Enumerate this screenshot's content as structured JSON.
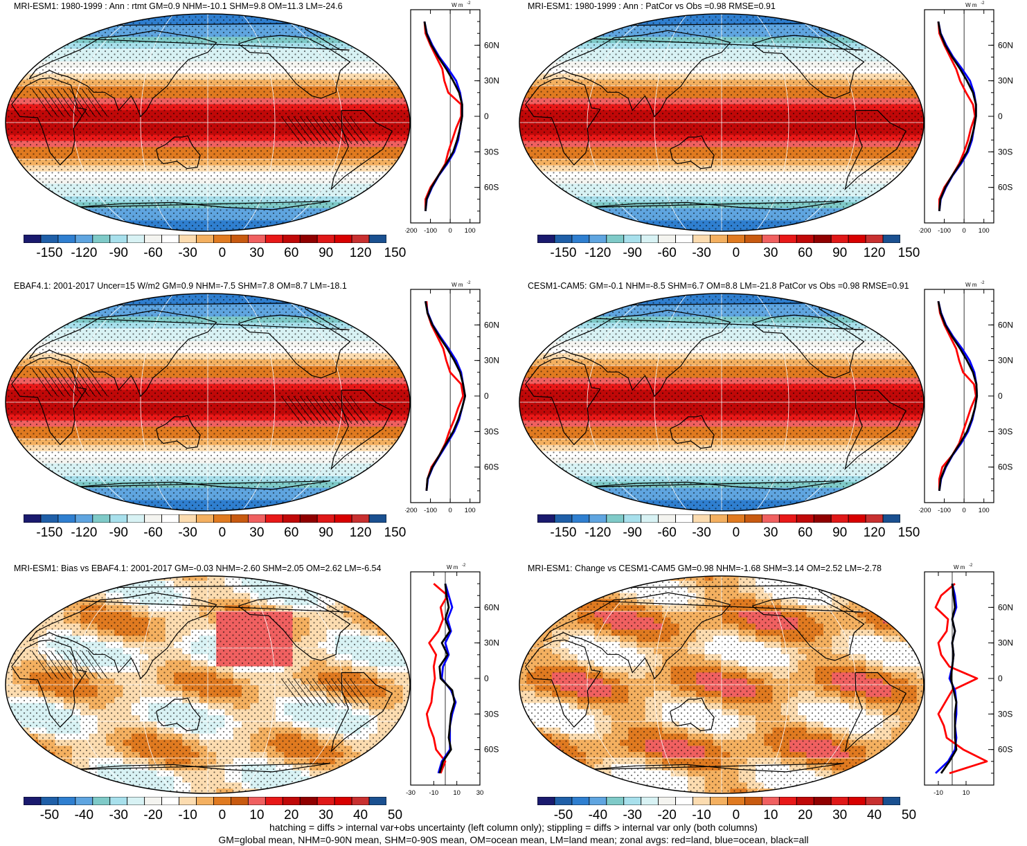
{
  "colors": {
    "levels": [
      "#1a1a6e",
      "#1f5fa8",
      "#2f7fd0",
      "#5fa5e0",
      "#7fcac8",
      "#a8e0ec",
      "#d8f2f4",
      "#f4f4f0",
      "#ffffff",
      "#fcdcb0",
      "#f4b060",
      "#e07a20",
      "#c85a10",
      "#f06060",
      "#e81818",
      "#c00808",
      "#900000",
      "#e01818",
      "#d80000",
      "#c83030",
      "#1a5090"
    ],
    "land": "#000000",
    "grid": "#ffffff",
    "zonal_land": "#ff0000",
    "zonal_ocean": "#0000ff",
    "zonal_all": "#000000"
  },
  "panels": [
    {
      "id": "mri-esm1-1980-1999",
      "title": "MRI-ESM1: 1980-1999 : Ann : rtmt GM=0.9 NHM=-10.1 SHM=9.8 OM=11.3 LM=-24.6",
      "kind": "absolute",
      "hatch": true,
      "colorbar_labels": [
        "-150",
        "-120",
        "-90",
        "-60",
        "-30",
        "0",
        "30",
        "60",
        "90",
        "120",
        "150"
      ],
      "zonal": {
        "unit": "W m",
        "unit_sup": "-2",
        "xticks": [
          "-200",
          "-100",
          "0",
          "100"
        ],
        "xmin": -200,
        "xmax": 150,
        "lat_labels": [
          "60N",
          "30N",
          "0",
          "30S",
          "60S"
        ]
      }
    },
    {
      "id": "mri-esm1-patcor",
      "title": "MRI-ESM1: 1980-1999 : Ann : PatCor vs Obs =0.98 RMSE=0.91",
      "kind": "absolute",
      "hatch": false,
      "colorbar_labels": [
        "-150",
        "-120",
        "-90",
        "-60",
        "-30",
        "0",
        "30",
        "60",
        "90",
        "120",
        "150"
      ],
      "zonal": {
        "unit": "W m",
        "unit_sup": "-2",
        "xticks": [
          "-200",
          "-100",
          "0",
          "100"
        ],
        "xmin": -200,
        "xmax": 150,
        "lat_labels": [
          "60N",
          "30N",
          "0",
          "30S",
          "60S"
        ]
      }
    },
    {
      "id": "ebaf41-obs",
      "title": "EBAF4.1: 2001-2017 Uncer=15 W/m2 GM=0.9 NHM=-7.5 SHM=7.8 OM=8.7 LM=-18.1",
      "kind": "absolute",
      "hatch": true,
      "colorbar_labels": [
        "-150",
        "-120",
        "-90",
        "-60",
        "-30",
        "0",
        "30",
        "60",
        "90",
        "120",
        "150"
      ],
      "zonal": {
        "unit": "W m",
        "unit_sup": "-2",
        "xticks": [
          "-200",
          "-100",
          "0",
          "100"
        ],
        "xmin": -200,
        "xmax": 150,
        "lat_labels": [
          "60N",
          "30N",
          "0",
          "30S",
          "60S"
        ]
      }
    },
    {
      "id": "cesm1-cam5",
      "title": "CESM1-CAM5: GM=-0.1 NHM=-8.5 SHM=6.7 OM=8.8 LM=-21.8 PatCor vs Obs =0.98 RMSE=0.91",
      "kind": "absolute",
      "hatch": false,
      "colorbar_labels": [
        "-150",
        "-120",
        "-90",
        "-60",
        "-30",
        "0",
        "30",
        "60",
        "90",
        "120",
        "150"
      ],
      "zonal": {
        "unit": "W m",
        "unit_sup": "-2",
        "xticks": [
          "-200",
          "-100",
          "0",
          "100"
        ],
        "xmin": -200,
        "xmax": 150,
        "lat_labels": [
          "60N",
          "30N",
          "0",
          "30S",
          "60S"
        ]
      }
    },
    {
      "id": "bias-vs-ebaf",
      "title": "MRI-ESM1: Bias vs EBAF4.1: 2001-2017 GM=-0.03 NHM=-2.60 SHM=2.05 OM=2.62 LM=-6.54",
      "kind": "bias",
      "hatch": true,
      "colorbar_labels": [
        "-50",
        "-40",
        "-30",
        "-20",
        "-10",
        "0",
        "10",
        "20",
        "30",
        "40",
        "50"
      ],
      "zonal": {
        "unit": "W m",
        "unit_sup": "-2",
        "xticks": [
          "-30",
          "-10",
          "10",
          "30"
        ],
        "xmin": -30,
        "xmax": 30,
        "lat_labels": [
          "60N",
          "30N",
          "0",
          "30S",
          "60S"
        ]
      }
    },
    {
      "id": "change-vs-cesm",
      "title": "MRI-ESM1: Change vs CESM1-CAM5 GM=0.98 NHM=-1.68 SHM=3.14 OM=2.52 LM=-2.78",
      "kind": "change",
      "hatch": false,
      "colorbar_labels": [
        "-50",
        "-40",
        "-30",
        "-20",
        "-10",
        "0",
        "10",
        "20",
        "30",
        "40",
        "50"
      ],
      "zonal": {
        "unit": "W m",
        "unit_sup": "-2",
        "xticks": [
          "-10",
          "10"
        ],
        "xmin": -20,
        "xmax": 30,
        "lat_labels": [
          "60N",
          "30N",
          "0",
          "30S",
          "60S"
        ]
      }
    }
  ],
  "footer": {
    "line1": "hatching = diffs > internal var+obs uncertainty (left column only); stippling = diffs > internal var only (both columns)",
    "line2": "GM=global mean, NHM=0-90N mean, SHM=0-90S mean, OM=ocean mean, LM=land mean; zonal avgs: red=land, blue=ocean, black=all"
  },
  "chart_data": [
    {
      "type": "heatmap",
      "title": "MRI-ESM1: 1980-1999 : Ann : rtmt GM=0.9 NHM=-10.1 SHM=9.8 OM=11.3 LM=-24.6",
      "colorbar_ticks": [
        -150,
        -120,
        -90,
        -60,
        -30,
        0,
        30,
        60,
        90,
        120,
        150
      ],
      "zonal_mean": {
        "lat": [
          80,
          70,
          60,
          50,
          40,
          30,
          20,
          10,
          0,
          -10,
          -20,
          -30,
          -40,
          -50,
          -60,
          -70,
          -80
        ],
        "all": [
          -130,
          -120,
          -95,
          -60,
          -20,
          15,
          45,
          60,
          60,
          50,
          35,
          15,
          -20,
          -60,
          -95,
          -120,
          -125
        ],
        "land": [
          -130,
          -125,
          -100,
          -70,
          -40,
          -30,
          -10,
          55,
          55,
          30,
          10,
          -10,
          -25,
          -60,
          -100,
          -125,
          -125
        ],
        "ocean": [
          -130,
          -118,
          -90,
          -55,
          -10,
          30,
          50,
          60,
          60,
          50,
          40,
          20,
          -15,
          -58,
          -92,
          -118,
          -125
        ]
      }
    },
    {
      "type": "heatmap",
      "title": "MRI-ESM1: 1980-1999 : Ann : PatCor vs Obs =0.98 RMSE=0.91",
      "colorbar_ticks": [
        -150,
        -120,
        -90,
        -60,
        -30,
        0,
        30,
        60,
        90,
        120,
        150
      ],
      "zonal_mean": {
        "lat": [
          80,
          70,
          60,
          50,
          40,
          30,
          20,
          10,
          0,
          -10,
          -20,
          -30,
          -40,
          -50,
          -60,
          -70,
          -80
        ],
        "all": [
          -130,
          -120,
          -95,
          -60,
          -20,
          15,
          45,
          60,
          60,
          50,
          35,
          15,
          -20,
          -60,
          -95,
          -120,
          -125
        ],
        "land": [
          -130,
          -125,
          -100,
          -70,
          -40,
          -20,
          10,
          45,
          55,
          35,
          20,
          0,
          -25,
          -60,
          -100,
          -125,
          -125
        ],
        "ocean": [
          -130,
          -118,
          -90,
          -55,
          -10,
          30,
          50,
          60,
          60,
          50,
          40,
          20,
          -15,
          -58,
          -92,
          -118,
          -125
        ]
      }
    },
    {
      "type": "heatmap",
      "title": "EBAF4.1: 2001-2017 Uncer=15 W/m2 GM=0.9 NHM=-7.5 SHM=7.8 OM=8.7 LM=-18.1",
      "colorbar_ticks": [
        -150,
        -120,
        -90,
        -60,
        -30,
        0,
        30,
        60,
        90,
        120,
        150
      ],
      "zonal_mean": {
        "lat": [
          80,
          70,
          60,
          50,
          40,
          30,
          20,
          10,
          0,
          -10,
          -20,
          -30,
          -40,
          -50,
          -60,
          -70,
          -80
        ],
        "all": [
          -125,
          -115,
          -90,
          -55,
          -15,
          20,
          50,
          65,
          75,
          60,
          40,
          15,
          -20,
          -55,
          -90,
          -115,
          -120
        ],
        "land": [
          -120,
          -115,
          -95,
          -65,
          -35,
          -20,
          0,
          55,
          65,
          40,
          20,
          -5,
          -25,
          -55,
          -95,
          -115,
          -120
        ],
        "ocean": [
          -125,
          -113,
          -88,
          -50,
          -8,
          30,
          55,
          65,
          75,
          60,
          45,
          20,
          -15,
          -52,
          -88,
          -113,
          -120
        ]
      }
    },
    {
      "type": "heatmap",
      "title": "CESM1-CAM5: GM=-0.1 NHM=-8.5 SHM=6.7 OM=8.8 LM=-21.8 PatCor vs Obs =0.98 RMSE=0.91",
      "colorbar_ticks": [
        -150,
        -120,
        -90,
        -60,
        -30,
        0,
        30,
        60,
        90,
        120,
        150
      ],
      "zonal_mean": {
        "lat": [
          80,
          70,
          60,
          50,
          40,
          30,
          20,
          10,
          0,
          -10,
          -20,
          -30,
          -40,
          -50,
          -60,
          -70,
          -80
        ],
        "all": [
          -130,
          -118,
          -95,
          -60,
          -20,
          15,
          45,
          62,
          65,
          55,
          38,
          15,
          -20,
          -60,
          -95,
          -118,
          -125
        ],
        "land": [
          -130,
          -122,
          -100,
          -70,
          -40,
          -25,
          -5,
          50,
          60,
          35,
          15,
          -5,
          -25,
          -60,
          -110,
          -125,
          -125
        ],
        "ocean": [
          -130,
          -116,
          -92,
          -55,
          -10,
          28,
          52,
          62,
          65,
          55,
          42,
          20,
          -15,
          -58,
          -92,
          -116,
          -125
        ]
      }
    },
    {
      "type": "heatmap",
      "title": "MRI-ESM1: Bias vs EBAF4.1: 2001-2017 GM=-0.03 NHM=-2.60 SHM=2.05 OM=2.62 LM=-6.54",
      "colorbar_ticks": [
        -50,
        -40,
        -30,
        -20,
        -10,
        0,
        10,
        20,
        30,
        40,
        50
      ],
      "zonal_mean": {
        "lat": [
          80,
          70,
          60,
          50,
          40,
          30,
          20,
          10,
          0,
          -10,
          -20,
          -30,
          -40,
          -50,
          -60,
          -70,
          -80
        ],
        "all": [
          0,
          1,
          3,
          0,
          4,
          -3,
          2,
          -5,
          -4,
          6,
          8,
          5,
          4,
          3,
          5,
          -2,
          -5
        ],
        "land": [
          -10,
          2,
          -4,
          -2,
          -6,
          -14,
          -8,
          -10,
          -9,
          -11,
          -12,
          -16,
          -14,
          -10,
          -8,
          0,
          -4
        ],
        "ocean": [
          0,
          3,
          6,
          2,
          5,
          0,
          3,
          -2,
          -3,
          5,
          9,
          6,
          4,
          4,
          4,
          -3,
          -6
        ]
      }
    },
    {
      "type": "heatmap",
      "title": "MRI-ESM1: Change vs CESM1-CAM5 GM=0.98 NHM=-1.68 SHM=3.14 OM=2.52 LM=-2.78",
      "colorbar_ticks": [
        -50,
        -40,
        -30,
        -20,
        -10,
        0,
        10,
        20,
        30,
        40,
        50
      ],
      "zonal_mean": {
        "lat": [
          80,
          70,
          60,
          50,
          40,
          30,
          20,
          10,
          0,
          -10,
          -20,
          -30,
          -40,
          -50,
          -60,
          -70,
          -80
        ],
        "all": [
          0,
          1,
          2,
          0,
          2,
          0,
          1,
          0,
          -1,
          1,
          3,
          2,
          2,
          2,
          3,
          -2,
          -8
        ],
        "land": [
          2,
          -8,
          -12,
          -3,
          -4,
          -10,
          -8,
          -2,
          18,
          0,
          -5,
          -10,
          -6,
          -4,
          8,
          25,
          -2
        ],
        "ocean": [
          0,
          2,
          3,
          0,
          2,
          0,
          1,
          0,
          -2,
          2,
          3,
          3,
          2,
          3,
          2,
          -3,
          -12
        ]
      }
    }
  ]
}
